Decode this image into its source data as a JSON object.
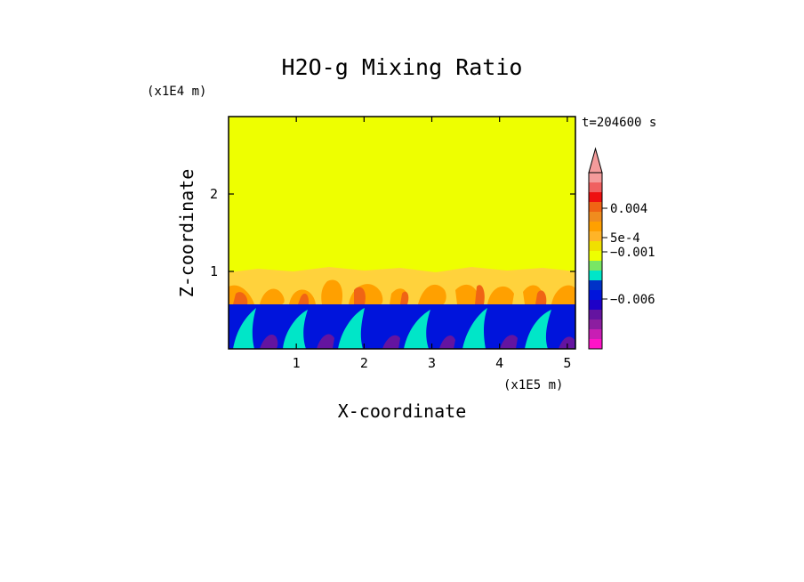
{
  "chart_data": {
    "type": "heatmap",
    "title": "H2O-g Mixing Ratio",
    "xlabel": "X-coordinate",
    "ylabel": "Z-coordinate",
    "x_units": "(x1E5 m)",
    "y_units": "(x1E4 m)",
    "timestamp": "t=204600 s",
    "xlim": [
      0,
      5.12
    ],
    "ylim": [
      0,
      3.0
    ],
    "x_ticks": [
      {
        "value": 1,
        "label": "1"
      },
      {
        "value": 2,
        "label": "2"
      },
      {
        "value": 3,
        "label": "3"
      },
      {
        "value": 4,
        "label": "4"
      },
      {
        "value": 5,
        "label": "5"
      }
    ],
    "y_ticks": [
      {
        "value": 1,
        "label": "1"
      },
      {
        "value": 2,
        "label": "2"
      }
    ],
    "upper_layer": {
      "z_range": [
        1.0,
        3.0
      ],
      "value_band": "uniform ~5e-4 to 0.001"
    },
    "mixed_layer": {
      "z_range": [
        0.6,
        1.05
      ],
      "value_band": "0.001 to 0.004 (orange/yellow plumes)"
    },
    "lower_layer": {
      "z_range": [
        0.0,
        0.6
      ],
      "value_band": "-0.006 to -0.001 (blue/purple)"
    },
    "colorbar": {
      "levels_top_to_bottom": [
        {
          "color": "#f49b9b"
        },
        {
          "color": "#f06060"
        },
        {
          "color": "#ee1010"
        },
        {
          "color": "#f06414"
        },
        {
          "color": "#f08c1e"
        },
        {
          "color": "#ffa000"
        },
        {
          "color": "#ffb428"
        },
        {
          "color": "#f0e000"
        },
        {
          "color": "#eeff00"
        },
        {
          "color": "#78e664"
        },
        {
          "color": "#00e6c8"
        },
        {
          "color": "#0032c8"
        },
        {
          "color": "#0014dc"
        },
        {
          "color": "#1e00c8"
        },
        {
          "color": "#6414a0"
        },
        {
          "color": "#8c1ea0"
        },
        {
          "color": "#c81eb4"
        },
        {
          "color": "#ff14c8"
        }
      ],
      "labels": [
        {
          "text": "0.004",
          "value": 0.004
        },
        {
          "text": "5e-4",
          "value": 0.0005
        },
        {
          "text": "−0.001",
          "value": -0.001
        },
        {
          "text": "−0.006",
          "value": -0.006
        }
      ]
    }
  }
}
